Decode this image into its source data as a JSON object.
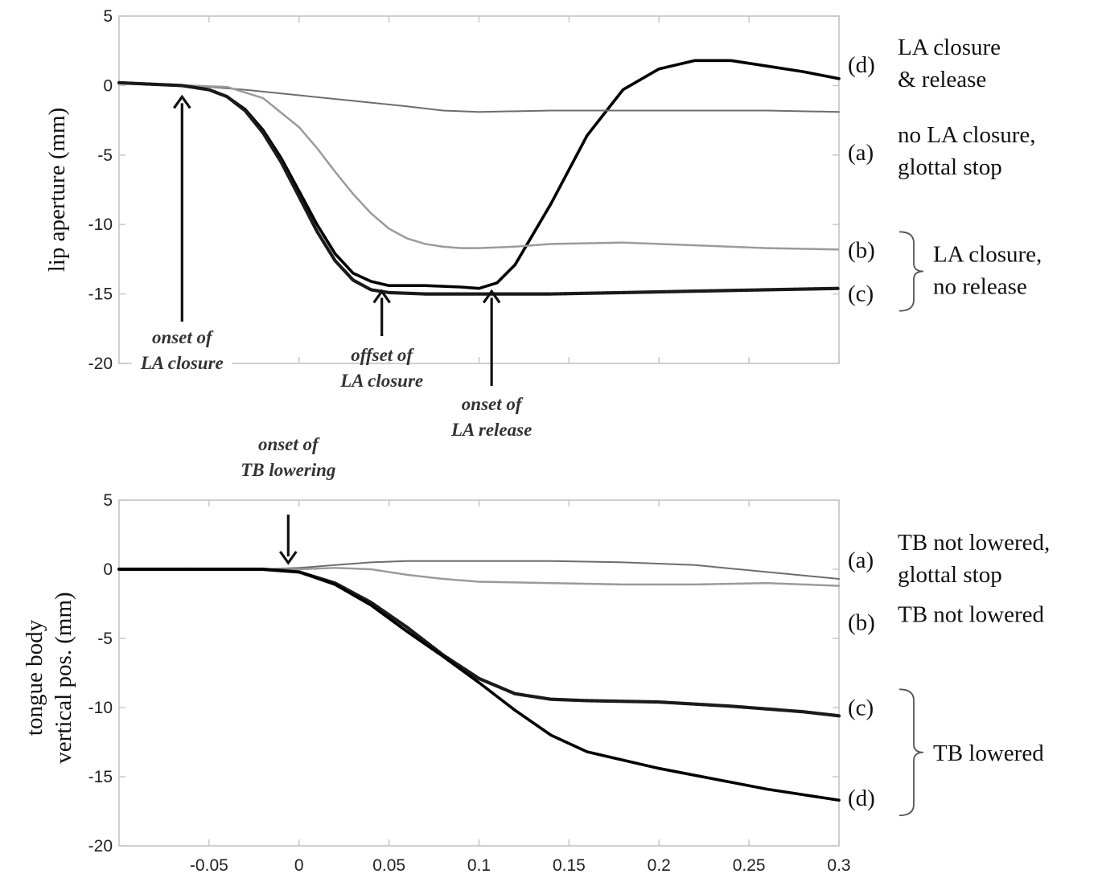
{
  "chart_data": [
    {
      "type": "line",
      "ylabel": "lip aperture (mm)",
      "xlim": [
        -0.1,
        0.3
      ],
      "ylim": [
        -20,
        5
      ],
      "xticks": [
        -0.05,
        0,
        0.05,
        0.1,
        0.15,
        0.2,
        0.25,
        0.3
      ],
      "xtick_labels": [
        "",
        "",
        "",
        "",
        "",
        "",
        "",
        ""
      ],
      "yticks": [
        -20,
        -15,
        -10,
        -5,
        0,
        5
      ],
      "ytick_labels": [
        "-20",
        "-15",
        "-10",
        "-5",
        "0",
        "5"
      ],
      "grid": false,
      "series": [
        {
          "id": "d",
          "name": "(d) LA closure & release",
          "style": "thick",
          "x": [
            -0.1,
            -0.065,
            -0.05,
            -0.04,
            -0.03,
            -0.02,
            -0.01,
            0,
            0.01,
            0.02,
            0.03,
            0.04,
            0.05,
            0.07,
            0.09,
            0.1,
            0.11,
            0.12,
            0.14,
            0.16,
            0.18,
            0.2,
            0.22,
            0.24,
            0.26,
            0.28,
            0.3
          ],
          "y": [
            0.2,
            0.0,
            -0.3,
            -0.8,
            -1.7,
            -3.2,
            -5.2,
            -7.6,
            -10.0,
            -12.1,
            -13.5,
            -14.1,
            -14.4,
            -14.4,
            -14.5,
            -14.6,
            -14.2,
            -12.9,
            -8.5,
            -3.6,
            -0.3,
            1.2,
            1.8,
            1.8,
            1.4,
            1.0,
            0.5
          ]
        },
        {
          "id": "a",
          "name": "(a) no LA closure, glottal stop",
          "style": "thin-gray",
          "x": [
            -0.1,
            -0.06,
            -0.03,
            0,
            0.03,
            0.06,
            0.08,
            0.1,
            0.14,
            0.18,
            0.22,
            0.26,
            0.3
          ],
          "y": [
            0.2,
            0.0,
            -0.3,
            -0.7,
            -1.1,
            -1.5,
            -1.8,
            -1.9,
            -1.8,
            -1.8,
            -1.8,
            -1.8,
            -1.9
          ]
        },
        {
          "id": "b",
          "name": "(b) LA closure, no release",
          "style": "dotted-gray",
          "x": [
            -0.1,
            -0.06,
            -0.04,
            -0.02,
            0,
            0.01,
            0.02,
            0.03,
            0.04,
            0.05,
            0.06,
            0.07,
            0.08,
            0.09,
            0.1,
            0.12,
            0.14,
            0.18,
            0.22,
            0.26,
            0.3
          ],
          "y": [
            0.2,
            0.0,
            -0.1,
            -0.9,
            -3.0,
            -4.5,
            -6.2,
            -7.8,
            -9.2,
            -10.3,
            -11.0,
            -11.4,
            -11.6,
            -11.7,
            -11.7,
            -11.6,
            -11.4,
            -11.3,
            -11.5,
            -11.7,
            -11.8
          ]
        },
        {
          "id": "c",
          "name": "(c) LA closure, no release",
          "style": "dotted-black",
          "x": [
            -0.1,
            -0.065,
            -0.05,
            -0.04,
            -0.03,
            -0.02,
            -0.01,
            0,
            0.01,
            0.02,
            0.03,
            0.04,
            0.05,
            0.07,
            0.09,
            0.11,
            0.14,
            0.18,
            0.22,
            0.26,
            0.3
          ],
          "y": [
            0.2,
            0.0,
            -0.3,
            -0.8,
            -1.8,
            -3.4,
            -5.5,
            -8.0,
            -10.5,
            -12.6,
            -14.0,
            -14.7,
            -14.9,
            -15.0,
            -15.0,
            -15.0,
            -15.0,
            -14.9,
            -14.8,
            -14.7,
            -14.6
          ]
        }
      ],
      "side_labels": [
        {
          "tag": "(d)",
          "lines": [
            "LA closure",
            "& release"
          ]
        },
        {
          "tag": "(a)",
          "lines": [
            "no LA closure,",
            "glottal stop"
          ]
        },
        {
          "tag": "(b)",
          "lines": []
        },
        {
          "tag": "(c)",
          "lines": []
        }
      ],
      "group_label": [
        "LA closure,",
        "no release"
      ],
      "annotations": [
        {
          "lines": [
            "onset of",
            "LA closure"
          ],
          "x": -0.065
        },
        {
          "lines": [
            "offset of",
            "LA closure"
          ],
          "x": 0.046
        },
        {
          "lines": [
            "onset of",
            "LA release"
          ],
          "x": 0.107
        }
      ]
    },
    {
      "type": "line",
      "ylabel": [
        "tongue body",
        "vertical pos.  (mm)"
      ],
      "xlim": [
        -0.1,
        0.3
      ],
      "ylim": [
        -20,
        5
      ],
      "xticks": [
        -0.05,
        0,
        0.05,
        0.1,
        0.15,
        0.2,
        0.25,
        0.3
      ],
      "xtick_labels": [
        "-0.05",
        "0",
        "0.05",
        "0.1",
        "0.15",
        "0.2",
        "0.25",
        "0.3"
      ],
      "yticks": [
        -20,
        -15,
        -10,
        -5,
        0,
        5
      ],
      "ytick_labels": [
        "-20",
        "-15",
        "-10",
        "-5",
        "0",
        "5"
      ],
      "grid": false,
      "series": [
        {
          "id": "a",
          "name": "(a) TB not lowered, glottal stop",
          "style": "thin-gray",
          "x": [
            -0.1,
            -0.02,
            0,
            0.02,
            0.04,
            0.06,
            0.08,
            0.1,
            0.14,
            0.18,
            0.22,
            0.26,
            0.3
          ],
          "y": [
            0.0,
            0.0,
            0.1,
            0.3,
            0.5,
            0.6,
            0.6,
            0.6,
            0.6,
            0.5,
            0.3,
            -0.2,
            -0.7
          ]
        },
        {
          "id": "b",
          "name": "(b) TB not lowered",
          "style": "dotted-gray",
          "x": [
            -0.1,
            -0.02,
            0,
            0.02,
            0.04,
            0.06,
            0.08,
            0.1,
            0.14,
            0.18,
            0.22,
            0.26,
            0.3
          ],
          "y": [
            0.0,
            0.0,
            0.0,
            0.1,
            0.0,
            -0.4,
            -0.7,
            -0.9,
            -1.0,
            -1.1,
            -1.1,
            -1.0,
            -1.2
          ]
        },
        {
          "id": "c",
          "name": "(c) TB lowered",
          "style": "dotted-black",
          "x": [
            -0.1,
            -0.02,
            0,
            0.02,
            0.04,
            0.06,
            0.08,
            0.1,
            0.12,
            0.14,
            0.16,
            0.2,
            0.24,
            0.28,
            0.3
          ],
          "y": [
            0.0,
            0.0,
            -0.2,
            -1.0,
            -2.4,
            -4.2,
            -6.2,
            -7.9,
            -9.0,
            -9.4,
            -9.5,
            -9.6,
            -9.9,
            -10.3,
            -10.6
          ]
        },
        {
          "id": "d",
          "name": "(d) TB lowered",
          "style": "thick",
          "x": [
            -0.1,
            -0.02,
            0,
            0.02,
            0.04,
            0.06,
            0.08,
            0.1,
            0.12,
            0.14,
            0.16,
            0.18,
            0.2,
            0.22,
            0.24,
            0.26,
            0.28,
            0.3
          ],
          "y": [
            0.0,
            0.0,
            -0.2,
            -1.1,
            -2.6,
            -4.5,
            -6.3,
            -8.2,
            -10.2,
            -12.0,
            -13.2,
            -13.8,
            -14.4,
            -14.9,
            -15.4,
            -15.9,
            -16.3,
            -16.7
          ]
        }
      ],
      "side_labels": [
        {
          "tag": "(a)",
          "lines": [
            "TB not lowered,",
            "glottal stop"
          ]
        },
        {
          "tag": "(b)",
          "lines": [
            "TB not lowered"
          ]
        },
        {
          "tag": "(c)",
          "lines": []
        },
        {
          "tag": "(d)",
          "lines": []
        }
      ],
      "group_label": [
        "TB lowered"
      ],
      "annotations": [
        {
          "lines": [
            "onset of",
            "TB lowering"
          ],
          "x": -0.006
        }
      ]
    }
  ]
}
